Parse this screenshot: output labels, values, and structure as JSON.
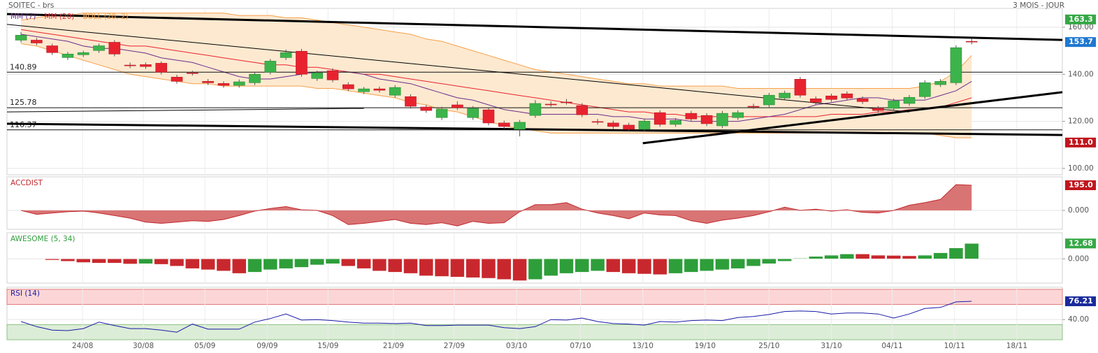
{
  "chart_data": [
    {
      "type": "candlestick",
      "title": "SOITEC - brs",
      "subtitle": "3 MOIS - JOUR",
      "open": [
        154.5,
        154.5,
        152.1,
        147.1,
        148.3,
        150.1,
        153.6,
        143.9,
        144.1,
        144.7,
        138.8,
        140.6,
        137.0,
        136.1,
        135.3,
        136.4,
        140.9,
        147.1,
        149.8,
        138.2,
        141.5,
        135.6,
        132.6,
        133.8,
        131.1,
        130.5,
        126.1,
        121.6,
        127.0,
        121.6,
        124.9,
        119.3,
        116.6,
        122.5,
        127.3,
        128.2,
        126.7,
        119.9,
        119.3,
        118.4,
        116.6,
        123.7,
        118.7,
        123.4,
        122.5,
        118.1,
        121.6,
        126.4,
        127.0,
        129.9,
        137.9,
        129.6,
        130.8,
        131.7,
        129.6,
        125.5,
        125.5,
        127.6,
        130.5,
        135.6,
        136.4,
        154.0
      ],
      "high": [
        158.0,
        155.5,
        153.0,
        149.5,
        150.0,
        153.0,
        154.5,
        145.0,
        145.0,
        145.5,
        139.8,
        141.5,
        138.0,
        137.0,
        137.8,
        141.0,
        146.5,
        150.5,
        150.8,
        141.5,
        142.5,
        136.6,
        134.6,
        134.8,
        135.4,
        131.5,
        127.0,
        126.2,
        128.5,
        126.5,
        126.0,
        120.3,
        120.6,
        129.0,
        128.5,
        129.5,
        127.7,
        121.0,
        120.3,
        119.4,
        121.1,
        124.7,
        121.4,
        124.4,
        123.5,
        124.4,
        124.7,
        127.5,
        132.1,
        133.0,
        138.9,
        130.6,
        131.8,
        132.7,
        130.6,
        126.5,
        129.7,
        131.2,
        137.4,
        138.0,
        152.3,
        155.0
      ],
      "low": [
        153.5,
        152.3,
        148.2,
        146.1,
        147.3,
        149.1,
        147.6,
        142.6,
        142.3,
        139.9,
        136.0,
        139.5,
        135.4,
        134.3,
        134.3,
        135.4,
        139.9,
        146.1,
        139.0,
        137.2,
        136.6,
        132.8,
        131.6,
        132.2,
        130.1,
        125.4,
        123.6,
        120.6,
        124.8,
        120.6,
        118.3,
        116.8,
        113.6,
        121.5,
        126.2,
        127.1,
        121.8,
        118.6,
        116.8,
        115.6,
        115.6,
        117.7,
        117.7,
        120.0,
        118.0,
        117.1,
        120.6,
        125.3,
        126.0,
        128.9,
        130.1,
        127.1,
        128.3,
        128.9,
        127.4,
        123.6,
        124.5,
        126.6,
        129.5,
        134.6,
        135.4,
        152.7
      ],
      "close": [
        156.6,
        153.3,
        149.2,
        148.6,
        149.2,
        152.1,
        148.6,
        143.6,
        143.3,
        140.9,
        137.0,
        140.5,
        136.4,
        135.3,
        136.8,
        140.0,
        145.6,
        149.2,
        140.0,
        140.6,
        137.6,
        133.8,
        133.8,
        133.2,
        134.4,
        126.4,
        124.6,
        125.2,
        125.8,
        125.5,
        119.3,
        117.8,
        119.6,
        127.6,
        127.2,
        128.1,
        122.8,
        119.6,
        117.8,
        116.6,
        120.1,
        118.7,
        120.4,
        121.0,
        119.0,
        123.4,
        123.7,
        126.3,
        131.1,
        132.0,
        131.1,
        128.1,
        129.3,
        129.9,
        128.4,
        124.6,
        128.7,
        130.2,
        136.4,
        137.0,
        151.3,
        153.7
      ],
      "up_color": "#3cb44b",
      "down_color": "#e8232f",
      "series": [
        {
          "name": "MM (7)",
          "color": "#6b2d8c",
          "values": [
            157,
            156,
            155,
            154,
            152,
            151,
            151,
            150,
            149,
            147,
            146,
            145,
            143,
            141,
            139,
            138,
            138,
            139,
            140,
            141,
            141,
            141,
            140,
            138,
            137,
            136,
            134,
            132,
            130,
            129,
            127,
            125,
            124,
            123,
            123,
            123,
            123,
            123,
            122,
            122,
            121,
            121,
            121,
            120,
            120,
            120,
            120,
            121,
            122,
            123,
            125,
            127,
            128,
            129,
            130,
            130,
            129,
            129,
            129,
            131,
            133,
            137
          ]
        },
        {
          "name": "MM (20)",
          "color": "#e8232f",
          "values": [
            159,
            158,
            157,
            156,
            155,
            154,
            153,
            152,
            152,
            151,
            150,
            149,
            148,
            147,
            146,
            145,
            144,
            144,
            143,
            143,
            142,
            141,
            140,
            140,
            139,
            138,
            137,
            136,
            135,
            134,
            133,
            132,
            131,
            130,
            129,
            128,
            127,
            126,
            125,
            124,
            124,
            123,
            123,
            122,
            122,
            122,
            122,
            122,
            122,
            122,
            122,
            122,
            123,
            123,
            123,
            124,
            124,
            125,
            125,
            126,
            128,
            130
          ]
        },
        {
          "name": "BOLL (20, 2)",
          "color": "#f5a04a",
          "fill": "#fde9d0",
          "values": [
            163,
            164,
            165,
            165,
            166,
            166,
            166,
            166,
            166,
            166,
            166,
            166,
            166,
            166,
            165,
            165,
            165,
            164,
            164,
            163,
            162,
            161,
            160,
            159,
            158,
            157,
            155,
            154,
            152,
            150,
            148,
            146,
            144,
            142,
            141,
            140,
            139,
            138,
            137,
            136,
            136,
            135,
            135,
            135,
            135,
            135,
            134,
            134,
            134,
            134,
            134,
            134,
            134,
            134,
            134,
            134,
            134,
            134,
            135,
            137,
            141,
            148
          ],
          "lower": [
            153,
            152,
            150,
            148,
            146,
            144,
            142,
            140,
            139,
            138,
            137,
            136,
            136,
            135,
            135,
            135,
            135,
            135,
            135,
            134,
            134,
            133,
            132,
            131,
            130,
            128,
            127,
            125,
            124,
            122,
            120,
            118,
            117,
            116,
            115,
            115,
            115,
            115,
            115,
            115,
            115,
            115,
            115,
            115,
            115,
            115,
            115,
            115,
            115,
            115,
            115,
            115,
            115,
            115,
            115,
            115,
            115,
            115,
            115,
            114,
            113,
            113
          ]
        }
      ],
      "levels": [
        140.89,
        125.78,
        116.37
      ],
      "trendlines": [
        {
          "from": [
            -0.9,
            165.6
          ],
          "to": [
            66.82,
            154.6
          ],
          "width": 3
        },
        {
          "from": [
            -0.9,
            119.0
          ],
          "to": [
            66.82,
            114.2
          ],
          "width": 3
        },
        {
          "from": [
            39.9,
            110.7
          ],
          "to": [
            66.82,
            132.4
          ],
          "width": 3
        },
        {
          "from": [
            -0.9,
            161.2
          ],
          "to": [
            57.0,
            124.0
          ],
          "width": 1
        },
        {
          "from": [
            -0.9,
            124.0
          ],
          "to": [
            22.0,
            125.5
          ],
          "width": 1
        }
      ],
      "ylim": [
        97.3,
        168
      ],
      "yticks": [
        {
          "value": 160,
          "label": "160.00"
        },
        {
          "value": 140,
          "label": "140.00"
        },
        {
          "value": 120,
          "label": "120.00"
        },
        {
          "value": 100,
          "label": "100.00"
        }
      ],
      "markers": [
        {
          "value": 163.3,
          "color": "#35a845"
        },
        {
          "value": 153.7,
          "color": "#1f78d1"
        },
        {
          "value": 111,
          "label": "111.0",
          "color": "#c0161e"
        }
      ]
    },
    {
      "type": "area",
      "title": "ACCDIST",
      "color": "#c0282d",
      "fill": "#d97474",
      "values": [
        0,
        -30,
        -20,
        -10,
        -5,
        -20,
        -40,
        -60,
        -90,
        -100,
        -90,
        -80,
        -85,
        -70,
        -40,
        -5,
        15,
        30,
        5,
        0,
        -40,
        -110,
        -100,
        -85,
        -70,
        -100,
        -110,
        -95,
        -120,
        -85,
        -100,
        -95,
        -10,
        45,
        45,
        60,
        10,
        -20,
        -40,
        -65,
        -20,
        -35,
        -40,
        -80,
        -100,
        -75,
        -60,
        -40,
        -10,
        25,
        0,
        10,
        -5,
        5,
        -15,
        -20,
        0,
        40,
        60,
        85,
        200,
        195
      ],
      "ylim": [
        -146,
        260
      ],
      "yticks": [
        {
          "value": 0,
          "label": "0.000"
        }
      ],
      "markers": [
        {
          "value": 195,
          "label": "195.0",
          "color": "#c0161e"
        }
      ]
    },
    {
      "type": "bar",
      "title": "AWESOME (5, 34)",
      "color": "#2e9e3a",
      "up_color": "#2e9e3a",
      "down_color": "#c8282d",
      "values": [
        null,
        null,
        -1,
        -2,
        -3,
        -3.5,
        -3.5,
        -4.2,
        -4,
        -4.5,
        -6,
        -8,
        -9,
        -10,
        -12,
        -11,
        -9,
        -8,
        -7,
        -5,
        -4,
        -6,
        -8,
        -10,
        -11,
        -12,
        -14,
        -14.5,
        -15,
        -15.5,
        -16,
        -17,
        -18,
        -17,
        -14,
        -12,
        -11,
        -10,
        -11,
        -12,
        -12.5,
        -13,
        -12,
        -11,
        -10,
        -9,
        -8,
        -6,
        -4,
        -2,
        0.5,
        2,
        3,
        4,
        4,
        3,
        2.8,
        2.5,
        3,
        5,
        9,
        12.68
      ],
      "ylim": [
        -20,
        21.5
      ],
      "yticks": [
        {
          "value": 0,
          "label": "0.000"
        }
      ],
      "markers": [
        {
          "value": 12.68,
          "color": "#35a845"
        }
      ]
    },
    {
      "type": "line",
      "title": "RSI (14)",
      "color": "#1a1aa8",
      "values": [
        36,
        26,
        19,
        18,
        22,
        35,
        28,
        22,
        22,
        19,
        15,
        31,
        21,
        21,
        21,
        35,
        42,
        51,
        39,
        40,
        38,
        35,
        33,
        33,
        32,
        33,
        28,
        28,
        29,
        29,
        29,
        24,
        22,
        26,
        40,
        39,
        43,
        36,
        32,
        31,
        29,
        36,
        35,
        38,
        39,
        38,
        44,
        46,
        50,
        56,
        57,
        56,
        51,
        53,
        53,
        51,
        43,
        51,
        62,
        64,
        75,
        76.21
      ],
      "bands": [
        {
          "range": [
            70,
            100
          ],
          "fill": "#fcd6d6",
          "stroke": "#e07a7a"
        },
        {
          "range": [
            0,
            30
          ],
          "fill": "#dcedd7",
          "stroke": "#8cc084"
        }
      ],
      "ylim": [
        0,
        104
      ],
      "yticks": [
        {
          "value": 40,
          "label": "40.00"
        }
      ],
      "markers": [
        {
          "value": 76.21,
          "color": "#1a2a9c"
        }
      ],
      "xlim": [
        -0.9,
        66.82
      ],
      "xticks": [
        {
          "value": 3.95,
          "label": "24/08"
        },
        {
          "value": 7.85,
          "label": "30/08"
        },
        {
          "value": 11.8,
          "label": "05/09"
        },
        {
          "value": 15.8,
          "label": "09/09"
        },
        {
          "value": 19.7,
          "label": "15/09"
        },
        {
          "value": 23.9,
          "label": "21/09"
        },
        {
          "value": 27.8,
          "label": "27/09"
        },
        {
          "value": 31.8,
          "label": "03/10"
        },
        {
          "value": 35.9,
          "label": "07/10"
        },
        {
          "value": 39.9,
          "label": "13/10"
        },
        {
          "value": 43.9,
          "label": "19/10"
        },
        {
          "value": 48.0,
          "label": "25/10"
        },
        {
          "value": 52.0,
          "label": "31/10"
        },
        {
          "value": 55.9,
          "label": "04/11"
        },
        {
          "value": 59.9,
          "label": "10/11"
        },
        {
          "value": 63.9,
          "label": "18/11"
        }
      ]
    }
  ]
}
